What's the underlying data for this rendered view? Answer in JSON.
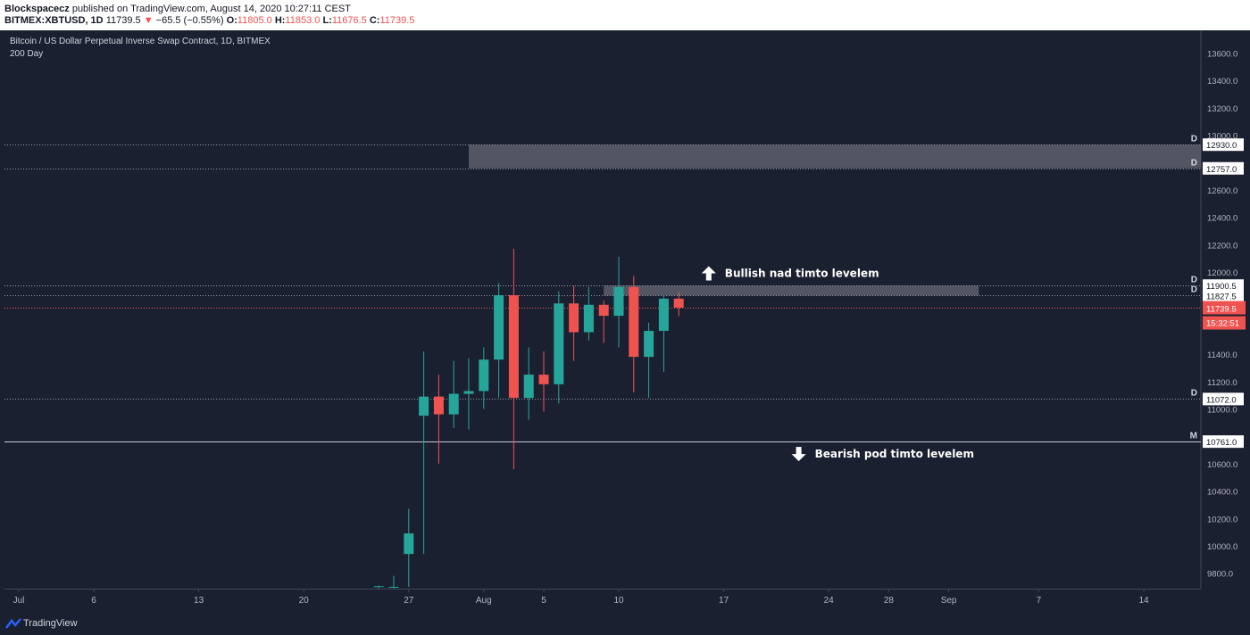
{
  "header": {
    "author": "Blockspacecz",
    "published": " published on TradingView.com, August 14, 2020 10:27:11 CEST",
    "symbol": "BITMEX:XBTUSD, 1D",
    "last": "11739.5",
    "change_arrow": "▼",
    "change": "−65.5 (−0.55%)",
    "o_label": "O:",
    "o_value": "11805.0",
    "h_label": "H:",
    "h_value": "11853.0",
    "l_label": "L:",
    "l_value": "11676.5",
    "c_label": "C:",
    "c_value": "11739.5"
  },
  "legend": {
    "title": "Bitcoin / US Dollar Perpetual Inverse Swap Contract, 1D, BITMEX",
    "subtitle": "200 Day"
  },
  "footer": {
    "brand": "TradingView",
    "logo_icon": "tradingview-logo-icon"
  },
  "colors": {
    "background": "#1b2031",
    "up": "#26a69a",
    "down": "#ef5350",
    "zone": "#5d606b",
    "axis_text": "#b2b5be"
  },
  "chart_data": {
    "type": "candlestick",
    "ylim": [
      9700,
      13700
    ],
    "yticks": [
      9800,
      10000,
      10200,
      10400,
      10600,
      11000,
      11200,
      11400,
      12000,
      12200,
      12400,
      12600,
      13000,
      13200,
      13400,
      13600
    ],
    "x_axis": {
      "start": "2020-07-01",
      "labels": [
        {
          "date": "2020-07-01",
          "label": "Jul"
        },
        {
          "date": "2020-07-06",
          "label": "6"
        },
        {
          "date": "2020-07-13",
          "label": "13"
        },
        {
          "date": "2020-07-20",
          "label": "20"
        },
        {
          "date": "2020-07-27",
          "label": "27"
        },
        {
          "date": "2020-08-01",
          "label": "Aug"
        },
        {
          "date": "2020-08-05",
          "label": "5"
        },
        {
          "date": "2020-08-10",
          "label": "10"
        },
        {
          "date": "2020-08-17",
          "label": "17"
        },
        {
          "date": "2020-08-24",
          "label": "24"
        },
        {
          "date": "2020-08-28",
          "label": "28"
        },
        {
          "date": "2020-09-01",
          "label": "Sep"
        },
        {
          "date": "2020-09-07",
          "label": "7"
        },
        {
          "date": "2020-09-14",
          "label": "14"
        }
      ]
    },
    "candles": [
      {
        "date": "2020-07-25",
        "o": 9700,
        "h": 9710,
        "l": 9690,
        "c": 9705
      },
      {
        "date": "2020-07-26",
        "o": 9700,
        "h": 9780,
        "l": 9690,
        "c": 9700
      },
      {
        "date": "2020-07-27",
        "o": 9940,
        "h": 10270,
        "l": 9700,
        "c": 10090
      },
      {
        "date": "2020-07-28",
        "o": 10950,
        "h": 11420,
        "l": 9940,
        "c": 11090
      },
      {
        "date": "2020-07-29",
        "o": 11090,
        "h": 11250,
        "l": 10600,
        "c": 10960
      },
      {
        "date": "2020-07-30",
        "o": 10960,
        "h": 11350,
        "l": 10860,
        "c": 11110
      },
      {
        "date": "2020-07-31",
        "o": 11110,
        "h": 11370,
        "l": 10850,
        "c": 11130
      },
      {
        "date": "2020-08-01",
        "o": 11130,
        "h": 11450,
        "l": 11000,
        "c": 11360
      },
      {
        "date": "2020-08-02",
        "o": 11360,
        "h": 11920,
        "l": 11080,
        "c": 11830
      },
      {
        "date": "2020-08-03",
        "o": 11830,
        "h": 12170,
        "l": 10560,
        "c": 11080
      },
      {
        "date": "2020-08-04",
        "o": 11080,
        "h": 11450,
        "l": 10920,
        "c": 11250
      },
      {
        "date": "2020-08-05",
        "o": 11250,
        "h": 11420,
        "l": 10980,
        "c": 11180
      },
      {
        "date": "2020-08-06",
        "o": 11180,
        "h": 11860,
        "l": 11040,
        "c": 11770
      },
      {
        "date": "2020-08-07",
        "o": 11770,
        "h": 11900,
        "l": 11350,
        "c": 11560
      },
      {
        "date": "2020-08-08",
        "o": 11560,
        "h": 11890,
        "l": 11500,
        "c": 11760
      },
      {
        "date": "2020-08-09",
        "o": 11760,
        "h": 11790,
        "l": 11480,
        "c": 11680
      },
      {
        "date": "2020-08-10",
        "o": 11680,
        "h": 12110,
        "l": 11450,
        "c": 11890
      },
      {
        "date": "2020-08-11",
        "o": 11890,
        "h": 11970,
        "l": 11120,
        "c": 11380
      },
      {
        "date": "2020-08-12",
        "o": 11380,
        "h": 11630,
        "l": 11080,
        "c": 11570
      },
      {
        "date": "2020-08-13",
        "o": 11570,
        "h": 11830,
        "l": 11270,
        "c": 11805
      },
      {
        "date": "2020-08-14",
        "o": 11805,
        "h": 11853,
        "l": 11676.5,
        "c": 11739.5
      }
    ],
    "levels": [
      {
        "value": 12930.0,
        "label": "12930.0",
        "flag": "D",
        "style": "dotted"
      },
      {
        "value": 12757.0,
        "label": "12757.0",
        "flag": "D",
        "style": "dotted"
      },
      {
        "value": 11900.5,
        "label": "11900.5",
        "flag": "D",
        "style": "dotted"
      },
      {
        "value": 11827.5,
        "label": "11827.5",
        "flag": "D",
        "style": "dotted"
      },
      {
        "value": 11072.0,
        "label": "11072.0",
        "flag": "D",
        "style": "dotted"
      },
      {
        "value": 10761.0,
        "label": "10761.0",
        "flag": "M",
        "style": "solid"
      }
    ],
    "zones": [
      {
        "from_date": "2020-07-31",
        "to_date": "2020-09-24",
        "top": 12930.0,
        "bottom": 12757.0
      },
      {
        "from_date": "2020-08-09",
        "to_date": "2020-09-03",
        "top": 11900.5,
        "bottom": 11827.5
      }
    ],
    "current_price": {
      "value": 11739.5,
      "label": "11739.5",
      "countdown": "15:32:51"
    },
    "annotations": [
      {
        "text": "Bullish nad timto levelem",
        "arrow": "up",
        "date": "2020-08-16",
        "price": 11990
      },
      {
        "text": "Bearish pod timto levelem",
        "arrow": "down",
        "date": "2020-08-22",
        "price": 10670
      }
    ]
  }
}
